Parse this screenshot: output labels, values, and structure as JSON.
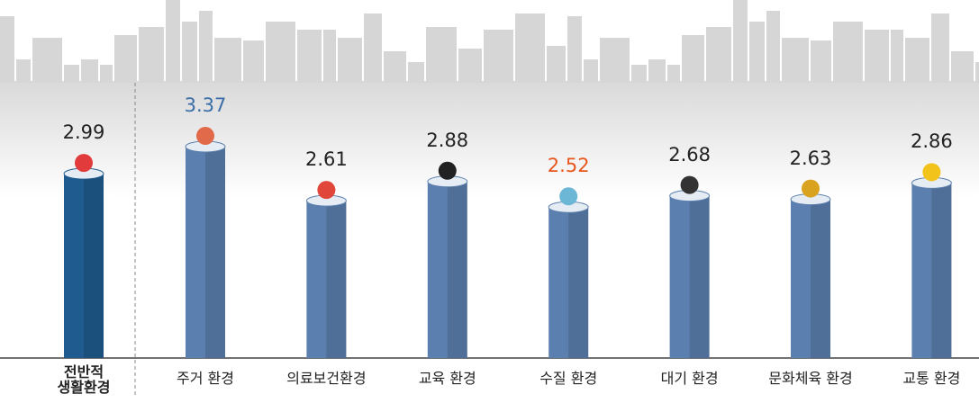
{
  "chart_data": {
    "type": "bar",
    "categories": [
      "전반적\n생활환경",
      "주거 환경",
      "의료보건환경",
      "교육 환경",
      "수질 환경",
      "대기 환경",
      "문화체육 환경",
      "교통 환경"
    ],
    "values": [
      2.99,
      3.37,
      2.61,
      2.88,
      2.52,
      2.68,
      2.63,
      2.86
    ],
    "colors": [
      "#1f5b8e",
      "#5b7fae",
      "#5b7fae",
      "#5b7fae",
      "#5b7fae",
      "#5b7fae",
      "#5b7fae",
      "#5b7fae"
    ],
    "value_label_colors": [
      "#222222",
      "#3a6ea8",
      "#222222",
      "#222222",
      "#e8561e",
      "#222222",
      "#222222",
      "#222222"
    ],
    "ylim": [
      0.4,
      3.8
    ]
  }
}
